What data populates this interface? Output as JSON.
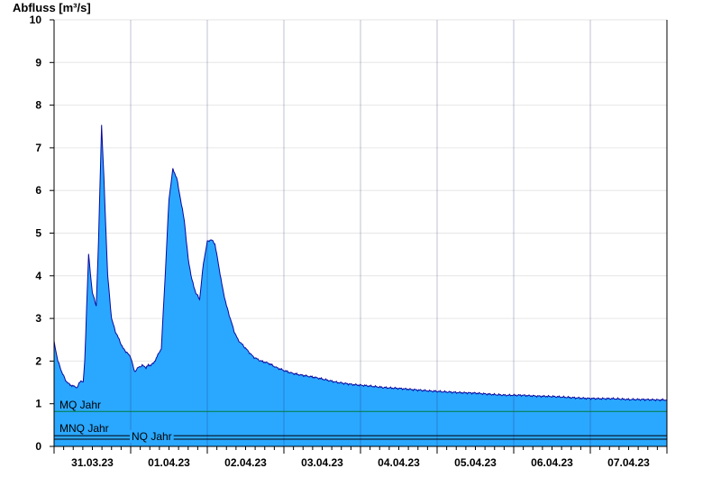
{
  "chart_data": {
    "type": "area",
    "title": "Abfluss [m³/s]",
    "ylabel": "Abfluss [m³/s]",
    "ylim": [
      0,
      10
    ],
    "yticks": [
      0,
      1,
      2,
      3,
      4,
      5,
      6,
      7,
      8,
      9,
      10
    ],
    "x_day_labels": [
      "31.03.23",
      "01.04.23",
      "02.04.23",
      "03.04.23",
      "04.04.23",
      "05.04.23",
      "06.04.23",
      "07.04.23"
    ],
    "xlim_days_from_label_start": [
      -0.5,
      7.5
    ],
    "grid": true,
    "series": [
      {
        "name": "",
        "color": "#2aa8ff",
        "line_color": "#0a0aa0",
        "x_days": [
          -0.5,
          -0.45,
          -0.4,
          -0.35,
          -0.3,
          -0.2,
          -0.15,
          -0.12,
          -0.1,
          -0.05,
          0,
          0.05,
          0.08,
          0.12,
          0.15,
          0.2,
          0.25,
          0.3,
          0.35,
          0.4,
          0.45,
          0.5,
          0.55,
          0.6,
          0.65,
          0.7,
          0.73,
          0.75,
          0.8,
          0.9,
          0.95,
          1.0,
          1.05,
          1.1,
          1.15,
          1.2,
          1.25,
          1.3,
          1.35,
          1.4,
          1.45,
          1.5,
          1.55,
          1.6,
          1.7,
          1.75,
          1.8,
          1.85,
          1.9,
          1.95,
          2.0,
          2.05,
          2.1,
          2.15,
          2.2,
          2.3,
          2.4,
          2.5,
          2.6,
          2.7,
          2.8,
          2.9,
          3.0,
          3.2,
          3.4,
          3.6,
          3.8,
          4.0,
          4.2,
          4.4,
          4.6,
          4.8,
          5.0,
          5.2,
          5.4,
          5.6,
          5.8,
          6.0,
          6.2,
          6.4,
          6.6,
          6.8,
          7.0,
          7.2,
          7.4,
          7.5
        ],
        "values": [
          2.45,
          2.0,
          1.75,
          1.55,
          1.45,
          1.38,
          1.55,
          1.5,
          2.0,
          4.5,
          3.6,
          3.3,
          4.8,
          7.55,
          6.3,
          4.0,
          3.0,
          2.7,
          2.5,
          2.3,
          2.2,
          2.1,
          1.75,
          1.85,
          1.9,
          1.85,
          1.9,
          1.9,
          1.95,
          2.3,
          4.0,
          5.8,
          6.5,
          6.3,
          5.8,
          5.3,
          4.4,
          3.9,
          3.6,
          3.45,
          4.3,
          4.8,
          4.85,
          4.75,
          3.7,
          3.3,
          3.0,
          2.7,
          2.5,
          2.4,
          2.3,
          2.2,
          2.1,
          2.05,
          2.0,
          1.95,
          1.85,
          1.78,
          1.72,
          1.68,
          1.65,
          1.62,
          1.58,
          1.5,
          1.45,
          1.42,
          1.38,
          1.36,
          1.33,
          1.3,
          1.28,
          1.26,
          1.25,
          1.22,
          1.2,
          1.2,
          1.18,
          1.17,
          1.15,
          1.13,
          1.12,
          1.12,
          1.1,
          1.1,
          1.09,
          1.09
        ]
      }
    ],
    "reference_lines": [
      {
        "label": "MQ Jahr",
        "value": 0.82,
        "color": "#007a3d"
      },
      {
        "label": "MNQ Jahr",
        "value": 0.25,
        "color": "#000000"
      },
      {
        "label": "NQ Jahr",
        "value": 0.17,
        "color": "#000000"
      }
    ]
  }
}
